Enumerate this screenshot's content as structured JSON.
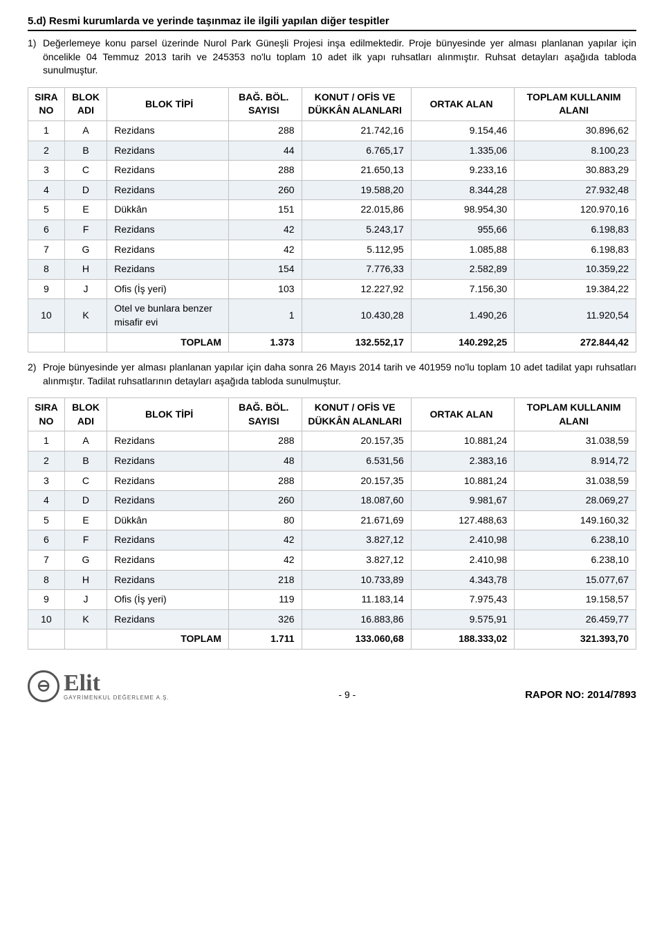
{
  "section": {
    "heading": "5.d)  Resmi kurumlarda ve yerinde taşınmaz ile ilgili yapılan diğer tespitler",
    "item1_num": "1)",
    "item1_text": "Değerlemeye konu parsel üzerinde Nurol Park Güneşli Projesi inşa edilmektedir. Proje bünyesinde yer alması planlanan yapılar için öncelikle 04 Temmuz 2013 tarih ve 245353 no'lu toplam 10 adet ilk yapı ruhsatları alınmıştır. Ruhsat detayları aşağıda tabloda sunulmuştur.",
    "item2_num": "2)",
    "item2_text": "Proje bünyesinde yer alması planlanan yapılar için daha sonra 26 Mayıs 2014 tarih ve 401959 no'lu toplam 10 adet tadilat yapı ruhsatları alınmıştır. Tadilat ruhsatlarının detayları aşağıda tabloda sunulmuştur."
  },
  "table_headers": {
    "sira": "SIRA NO",
    "blok_adi": "BLOK ADI",
    "blok_tipi": "BLOK TİPİ",
    "bag_bol": "BAĞ. BÖL. SAYISI",
    "konut": "KONUT / OFİS VE DÜKKÂN ALANLARI",
    "ortak": "ORTAK ALAN",
    "toplam": "TOPLAM KULLANIM ALANI",
    "toplam_label": "TOPLAM"
  },
  "table1": {
    "rows": [
      {
        "n": "1",
        "adi": "A",
        "tipi": "Rezidans",
        "sayi": "288",
        "konut": "21.742,16",
        "ortak": "9.154,46",
        "toplam": "30.896,62"
      },
      {
        "n": "2",
        "adi": "B",
        "tipi": "Rezidans",
        "sayi": "44",
        "konut": "6.765,17",
        "ortak": "1.335,06",
        "toplam": "8.100,23"
      },
      {
        "n": "3",
        "adi": "C",
        "tipi": "Rezidans",
        "sayi": "288",
        "konut": "21.650,13",
        "ortak": "9.233,16",
        "toplam": "30.883,29"
      },
      {
        "n": "4",
        "adi": "D",
        "tipi": "Rezidans",
        "sayi": "260",
        "konut": "19.588,20",
        "ortak": "8.344,28",
        "toplam": "27.932,48"
      },
      {
        "n": "5",
        "adi": "E",
        "tipi": "Dükkân",
        "sayi": "151",
        "konut": "22.015,86",
        "ortak": "98.954,30",
        "toplam": "120.970,16"
      },
      {
        "n": "6",
        "adi": "F",
        "tipi": "Rezidans",
        "sayi": "42",
        "konut": "5.243,17",
        "ortak": "955,66",
        "toplam": "6.198,83"
      },
      {
        "n": "7",
        "adi": "G",
        "tipi": "Rezidans",
        "sayi": "42",
        "konut": "5.112,95",
        "ortak": "1.085,88",
        "toplam": "6.198,83"
      },
      {
        "n": "8",
        "adi": "H",
        "tipi": "Rezidans",
        "sayi": "154",
        "konut": "7.776,33",
        "ortak": "2.582,89",
        "toplam": "10.359,22"
      },
      {
        "n": "9",
        "adi": "J",
        "tipi": "Ofis (İş yeri)",
        "sayi": "103",
        "konut": "12.227,92",
        "ortak": "7.156,30",
        "toplam": "19.384,22"
      },
      {
        "n": "10",
        "adi": "K",
        "tipi": "Otel ve bunlara benzer misafir evi",
        "sayi": "1",
        "konut": "10.430,28",
        "ortak": "1.490,26",
        "toplam": "11.920,54"
      }
    ],
    "total": {
      "sayi": "1.373",
      "konut": "132.552,17",
      "ortak": "140.292,25",
      "toplam": "272.844,42"
    }
  },
  "table2": {
    "rows": [
      {
        "n": "1",
        "adi": "A",
        "tipi": "Rezidans",
        "sayi": "288",
        "konut": "20.157,35",
        "ortak": "10.881,24",
        "toplam": "31.038,59"
      },
      {
        "n": "2",
        "adi": "B",
        "tipi": "Rezidans",
        "sayi": "48",
        "konut": "6.531,56",
        "ortak": "2.383,16",
        "toplam": "8.914,72"
      },
      {
        "n": "3",
        "adi": "C",
        "tipi": "Rezidans",
        "sayi": "288",
        "konut": "20.157,35",
        "ortak": "10.881,24",
        "toplam": "31.038,59"
      },
      {
        "n": "4",
        "adi": "D",
        "tipi": "Rezidans",
        "sayi": "260",
        "konut": "18.087,60",
        "ortak": "9.981,67",
        "toplam": "28.069,27"
      },
      {
        "n": "5",
        "adi": "E",
        "tipi": "Dükkân",
        "sayi": "80",
        "konut": "21.671,69",
        "ortak": "127.488,63",
        "toplam": "149.160,32"
      },
      {
        "n": "6",
        "adi": "F",
        "tipi": "Rezidans",
        "sayi": "42",
        "konut": "3.827,12",
        "ortak": "2.410,98",
        "toplam": "6.238,10"
      },
      {
        "n": "7",
        "adi": "G",
        "tipi": "Rezidans",
        "sayi": "42",
        "konut": "3.827,12",
        "ortak": "2.410,98",
        "toplam": "6.238,10"
      },
      {
        "n": "8",
        "adi": "H",
        "tipi": "Rezidans",
        "sayi": "218",
        "konut": "10.733,89",
        "ortak": "4.343,78",
        "toplam": "15.077,67"
      },
      {
        "n": "9",
        "adi": "J",
        "tipi": "Ofis (İş yeri)",
        "sayi": "119",
        "konut": "11.183,14",
        "ortak": "7.975,43",
        "toplam": "19.158,57"
      },
      {
        "n": "10",
        "adi": "K",
        "tipi": "Rezidans",
        "sayi": "326",
        "konut": "16.883,86",
        "ortak": "9.575,91",
        "toplam": "26.459,77"
      }
    ],
    "total": {
      "sayi": "1.711",
      "konut": "133.060,68",
      "ortak": "188.333,02",
      "toplam": "321.393,70"
    }
  },
  "footer": {
    "logo_glyph": "⊖",
    "logo_name": "Elit",
    "logo_sub": "GAYRİMENKUL DEĞERLEME A.Ş.",
    "page": "- 9 -",
    "report_no": "RAPOR NO: 2014/7893"
  },
  "colors": {
    "alt_row": "#ebf1f5",
    "border": "#c0c0c0",
    "text": "#000000",
    "logo": "#555555"
  }
}
